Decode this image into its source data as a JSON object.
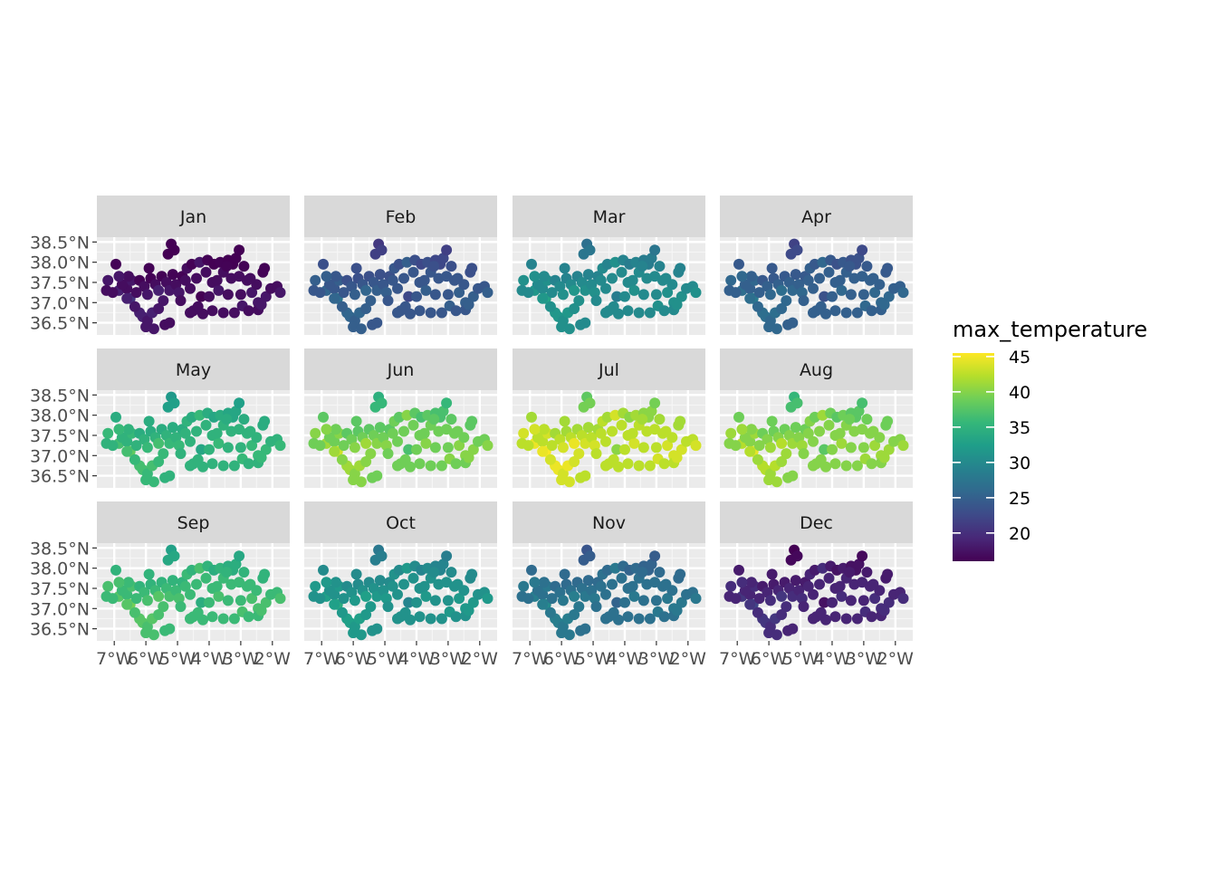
{
  "chart_data": {
    "type": "scatter",
    "panels": [
      "Jan",
      "Feb",
      "Mar",
      "Apr",
      "May",
      "Jun",
      "Jul",
      "Aug",
      "Sep",
      "Oct",
      "Nov",
      "Dec"
    ],
    "x_ticks": [
      "7°W",
      "6°W",
      "5°W",
      "4°W",
      "3°W",
      "2°W"
    ],
    "x_tick_values": [
      -7,
      -6,
      -5,
      -4,
      -3,
      -2
    ],
    "y_ticks": [
      "38.5°N",
      "38.0°N",
      "37.5°N",
      "37.0°N",
      "36.5°N"
    ],
    "y_tick_values": [
      38.5,
      38.0,
      37.5,
      37.0,
      36.5
    ],
    "xlim": [
      -7.55,
      -1.45
    ],
    "ylim": [
      36.2,
      38.62
    ],
    "grid": true,
    "legend": {
      "title": "max_temperature",
      "position": "right",
      "labels": [
        "45",
        "40",
        "35",
        "30",
        "25",
        "20"
      ],
      "label_values": [
        45,
        40,
        35,
        30,
        25,
        20
      ],
      "range": [
        16,
        45.5
      ],
      "colormap": "viridis"
    },
    "monthly_base_temperature": {
      "Jan": 17,
      "Feb": 24,
      "Mar": 30,
      "Apr": 25,
      "May": 35,
      "Jun": 39,
      "Jul": 42.5,
      "Aug": 40,
      "Sep": 36,
      "Oct": 31,
      "Nov": 27,
      "Dec": 19
    },
    "stations": [
      [
        -7.2,
        37.55
      ],
      [
        -7.25,
        37.3
      ],
      [
        -6.95,
        37.95
      ],
      [
        -6.85,
        37.3
      ],
      [
        -6.6,
        37.35
      ],
      [
        -6.45,
        37.55
      ],
      [
        -6.5,
        37.1
      ],
      [
        -6.3,
        37.25
      ],
      [
        -6.2,
        37.55
      ],
      [
        -6.05,
        37.4
      ],
      [
        -5.95,
        37.2
      ],
      [
        -5.85,
        37.6
      ],
      [
        -5.7,
        37.45
      ],
      [
        -5.6,
        37.3
      ],
      [
        -5.5,
        37.65
      ],
      [
        -5.35,
        37.5
      ],
      [
        -5.25,
        37.3
      ],
      [
        -5.15,
        37.7
      ],
      [
        -5.05,
        37.45
      ],
      [
        -4.95,
        37.25
      ],
      [
        -4.85,
        37.65
      ],
      [
        -4.7,
        37.85
      ],
      [
        -4.6,
        37.35
      ],
      [
        -4.55,
        37.95
      ],
      [
        -4.4,
        37.6
      ],
      [
        -4.3,
        38.0
      ],
      [
        -4.25,
        37.15
      ],
      [
        -4.1,
        37.75
      ],
      [
        -4.05,
        38.05
      ],
      [
        -3.9,
        37.5
      ],
      [
        -3.85,
        37.95
      ],
      [
        -3.7,
        37.3
      ],
      [
        -3.65,
        38.0
      ],
      [
        -3.55,
        37.75
      ],
      [
        -3.4,
        38.05
      ],
      [
        -3.3,
        37.6
      ],
      [
        -3.25,
        37.95
      ],
      [
        -3.15,
        38.1
      ],
      [
        -3.05,
        37.65
      ],
      [
        -3.0,
        37.2
      ],
      [
        -2.9,
        37.9
      ],
      [
        -2.8,
        37.55
      ],
      [
        -2.65,
        37.25
      ],
      [
        -2.5,
        37.45
      ],
      [
        -2.45,
        37.0
      ],
      [
        -2.3,
        37.75
      ],
      [
        -2.2,
        37.15
      ],
      [
        -2.05,
        37.35
      ],
      [
        -1.85,
        37.4
      ],
      [
        -1.75,
        37.25
      ],
      [
        -5.3,
        38.2
      ],
      [
        -5.2,
        38.45
      ],
      [
        -5.1,
        38.3
      ],
      [
        -3.05,
        38.3
      ],
      [
        -2.25,
        37.85
      ],
      [
        -6.2,
        36.75
      ],
      [
        -6.1,
        36.65
      ],
      [
        -5.95,
        36.55
      ],
      [
        -5.8,
        36.75
      ],
      [
        -6.0,
        36.4
      ],
      [
        -5.75,
        36.35
      ],
      [
        -5.4,
        36.45
      ],
      [
        -5.25,
        36.5
      ],
      [
        -6.35,
        36.9
      ],
      [
        -4.6,
        36.75
      ],
      [
        -4.5,
        36.8
      ],
      [
        -4.2,
        36.72
      ],
      [
        -3.9,
        36.8
      ],
      [
        -3.55,
        36.75
      ],
      [
        -3.2,
        36.75
      ],
      [
        -2.95,
        36.92
      ],
      [
        -2.75,
        36.8
      ],
      [
        -2.45,
        36.82
      ],
      [
        -6.75,
        37.45
      ],
      [
        -6.55,
        37.65
      ],
      [
        -5.45,
        37.05
      ],
      [
        -4.9,
        37.05
      ],
      [
        -4.0,
        37.15
      ],
      [
        -3.4,
        37.2
      ],
      [
        -2.7,
        37.6
      ],
      [
        -5.6,
        36.85
      ],
      [
        -3.45,
        37.9
      ],
      [
        -4.75,
        37.55
      ],
      [
        -6.85,
        37.65
      ],
      [
        -7.05,
        37.25
      ],
      [
        -5.9,
        37.85
      ],
      [
        -4.35,
        36.9
      ],
      [
        -3.75,
        37.55
      ],
      [
        -2.35,
        36.95
      ],
      [
        -6.6,
        37.1
      ]
    ],
    "station_offsets": [
      1,
      0,
      -1,
      2,
      0,
      1,
      4,
      0,
      -1,
      0,
      1,
      -1,
      0,
      2,
      -1,
      0,
      1,
      -1,
      0,
      1,
      -1,
      0,
      0,
      -1,
      0,
      1,
      -2,
      0,
      -1,
      0,
      -2,
      1,
      -1,
      0,
      -2,
      0,
      -2,
      -2,
      0,
      0,
      -1,
      0,
      1,
      0,
      1,
      -1,
      1,
      0,
      0,
      1,
      -3,
      -4,
      -3,
      -3,
      -1,
      2,
      2,
      1,
      2,
      1,
      1,
      0,
      0,
      1,
      0,
      0,
      0,
      0,
      0,
      0,
      1,
      0,
      0,
      0,
      0,
      1,
      0,
      0,
      0,
      0,
      1,
      -1,
      0,
      1,
      0,
      -1,
      0,
      0,
      1,
      2
    ]
  }
}
